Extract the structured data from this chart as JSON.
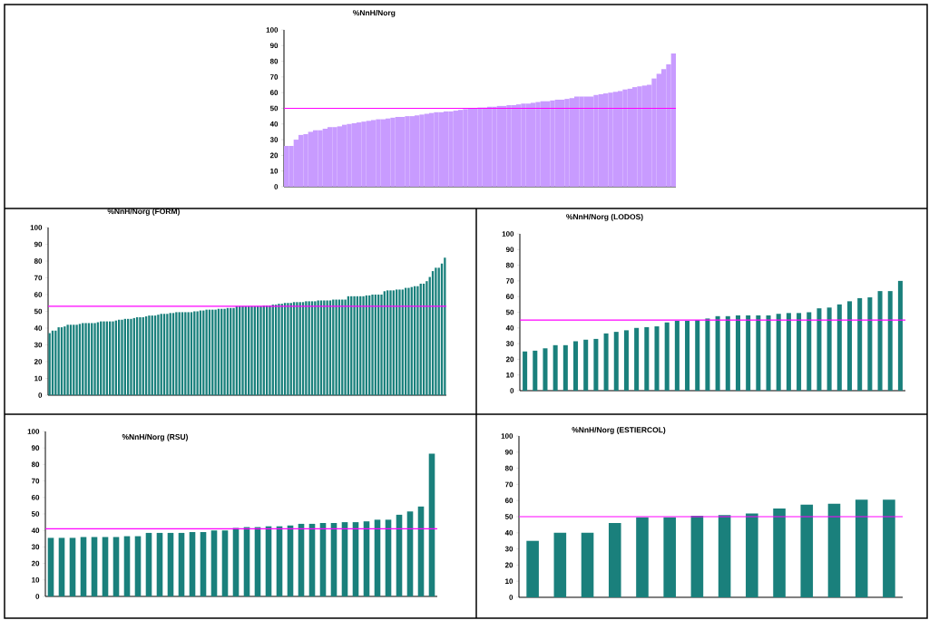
{
  "chart_data": [
    {
      "type": "bar",
      "title": "%NnH/Norg",
      "color": "#c89bff",
      "ylim": [
        0,
        100
      ],
      "yticks": [
        0,
        10,
        20,
        30,
        40,
        50,
        60,
        70,
        80,
        90,
        100
      ],
      "categories": [
        null,
        null,
        null,
        null,
        null,
        null,
        null,
        null,
        null,
        null,
        null,
        null,
        null,
        null,
        null,
        null,
        null,
        null,
        null,
        null,
        null,
        null,
        null,
        null,
        null,
        null,
        null,
        null,
        null,
        null,
        null,
        null,
        null,
        null,
        null,
        null,
        null,
        null,
        null,
        null,
        null,
        null,
        null,
        null,
        null,
        null,
        null,
        null,
        null,
        null,
        null,
        null,
        null,
        null,
        null,
        null,
        null,
        null,
        null,
        null,
        null,
        null,
        null,
        null,
        null,
        null,
        null,
        null,
        null,
        null,
        null,
        null,
        null,
        null,
        null,
        null,
        null,
        null,
        null,
        null,
        null
      ],
      "values": [
        26,
        26,
        30,
        33,
        33.5,
        35,
        36,
        36,
        37,
        38,
        38,
        38.5,
        39.5,
        40,
        40.5,
        41,
        41.5,
        42,
        42.5,
        43,
        43,
        43.5,
        44,
        44.5,
        44.5,
        45,
        45,
        45.5,
        46,
        46.5,
        47,
        47.5,
        47.5,
        48,
        48,
        48.5,
        49,
        49.5,
        50,
        50,
        50.5,
        50.5,
        51,
        51,
        51.5,
        51.5,
        52,
        52,
        52.5,
        53,
        53,
        53.5,
        54,
        54.5,
        54.5,
        55,
        55.5,
        55.5,
        56,
        56.5,
        57.5,
        57.5,
        57.5,
        57.5,
        58.5,
        59,
        59.5,
        60,
        60.5,
        61,
        62,
        62.5,
        63.5,
        64,
        64.5,
        65,
        69,
        72,
        75,
        78,
        85
      ],
      "ref_lines": [
        {
          "axis": "y",
          "value": 50,
          "color": "#ff00ff"
        }
      ]
    },
    {
      "type": "bar",
      "title": "%NnH/Norg (FORM)",
      "color": "#1a807c",
      "ylim": [
        0,
        100
      ],
      "yticks": [
        0,
        10,
        20,
        30,
        40,
        50,
        60,
        70,
        80,
        90,
        100
      ],
      "categories": [
        null,
        null,
        null,
        null,
        null,
        null,
        null,
        null,
        null,
        null,
        null,
        null,
        null,
        null,
        null,
        null,
        null,
        null,
        null,
        null,
        null,
        null,
        null,
        null,
        null,
        null,
        null,
        null,
        null,
        null,
        null,
        null,
        null,
        null,
        null,
        null,
        null,
        null,
        null,
        null,
        null,
        null,
        null,
        null,
        null,
        null,
        null,
        null,
        null,
        null,
        null,
        null,
        null,
        null,
        null,
        null,
        null,
        null,
        null,
        null,
        null,
        null,
        null,
        null,
        null,
        null,
        null,
        null,
        null,
        null,
        null,
        null,
        null,
        null,
        null,
        null,
        null,
        null,
        null,
        null,
        null,
        null,
        null,
        null,
        null,
        null,
        null,
        null,
        null,
        null,
        null,
        null,
        null,
        null,
        null,
        null,
        null,
        null,
        null,
        null,
        null,
        null,
        null,
        null,
        null,
        null,
        null,
        null,
        null,
        null,
        null,
        null,
        null,
        null,
        null,
        null,
        null,
        null,
        null,
        null,
        null,
        null,
        null,
        null,
        null,
        null,
        null,
        null,
        null,
        null,
        null,
        null
      ],
      "values": [
        37,
        38.5,
        38.5,
        40.5,
        40.5,
        41,
        42,
        42,
        42,
        42,
        42.5,
        43,
        43,
        43,
        43,
        43,
        43.5,
        44,
        44,
        44,
        44,
        44,
        44.5,
        45,
        45,
        45.5,
        45.5,
        45.5,
        46,
        46.5,
        46.5,
        46.5,
        47,
        47.5,
        47.5,
        47.5,
        48,
        48.5,
        48.5,
        48.5,
        49,
        49,
        49.5,
        49.5,
        49.5,
        49.5,
        49.5,
        49.5,
        50,
        50,
        50.5,
        50.5,
        51,
        51,
        51,
        51,
        51.5,
        51.5,
        51.5,
        52,
        52,
        52,
        53,
        53,
        53,
        53,
        53,
        53,
        53,
        53,
        53,
        53.5,
        53.5,
        53.5,
        54,
        54,
        54.5,
        54.5,
        55,
        55,
        55,
        55.5,
        55.5,
        55.5,
        55.5,
        56,
        56,
        56,
        56,
        56.5,
        56.5,
        56.5,
        56.5,
        56.5,
        57,
        57,
        57,
        57,
        57,
        59,
        59,
        59,
        59,
        59,
        59,
        59.5,
        59.5,
        60,
        60,
        60,
        60,
        62,
        62.5,
        62.5,
        62.5,
        63,
        63,
        63,
        64,
        64,
        64.5,
        65,
        65,
        66.5,
        66.5,
        68,
        70.5,
        74,
        76,
        76,
        78.5,
        82
      ],
      "ref_lines": [
        {
          "axis": "y",
          "value": 53,
          "color": "#ff00ff"
        }
      ]
    },
    {
      "type": "bar",
      "title": "%NnH/Norg  (LODOS)",
      "color": "#1a807c",
      "ylim": [
        0,
        100
      ],
      "yticks": [
        0,
        10,
        20,
        30,
        40,
        50,
        60,
        70,
        80,
        90,
        100
      ],
      "categories": [
        null,
        null,
        null,
        null,
        null,
        null,
        null,
        null,
        null,
        null,
        null,
        null,
        null,
        null,
        null,
        null,
        null,
        null,
        null,
        null,
        null,
        null,
        null,
        null,
        null,
        null,
        null,
        null,
        null,
        null,
        null,
        null,
        null,
        null,
        null,
        null,
        null,
        null
      ],
      "values": [
        25,
        25.5,
        27,
        29,
        29,
        31.5,
        32.5,
        33,
        36.5,
        37.5,
        38.5,
        40,
        40.5,
        41,
        43.5,
        44.5,
        44.5,
        45,
        46,
        47.5,
        47.5,
        48,
        48,
        48,
        48,
        49,
        49.5,
        49.5,
        50,
        52.5,
        53,
        55,
        57,
        59,
        59.5,
        63.5,
        63.5,
        70
      ],
      "ref_lines": [
        {
          "axis": "y",
          "value": 45,
          "color": "#ff00ff"
        }
      ]
    },
    {
      "type": "bar",
      "title": "%NnH/Norg (RSU)",
      "color": "#1a807c",
      "ylim": [
        0,
        100
      ],
      "yticks": [
        0,
        10,
        20,
        30,
        40,
        50,
        60,
        70,
        80,
        90,
        100
      ],
      "categories": [
        null,
        null,
        null,
        null,
        null,
        null,
        null,
        null,
        null,
        null,
        null,
        null,
        null,
        null,
        null,
        null,
        null,
        null,
        null,
        null,
        null,
        null,
        null,
        null,
        null,
        null,
        null,
        null,
        null,
        null,
        null,
        null,
        null,
        null,
        null,
        null
      ],
      "values": [
        35.5,
        35.5,
        35.5,
        36,
        36,
        36,
        36,
        36.5,
        36.5,
        38.5,
        38.5,
        38.5,
        38.5,
        39,
        39,
        40,
        40,
        41.5,
        42,
        42,
        42.5,
        42.5,
        43,
        44,
        44,
        44.5,
        44.5,
        45,
        45,
        45.5,
        46.5,
        46.5,
        49.5,
        51.5,
        54.5,
        86.5
      ],
      "ref_lines": [
        {
          "axis": "y",
          "value": 41,
          "color": "#ff00ff"
        }
      ]
    },
    {
      "type": "bar",
      "title": "%NnH/Norg (ESTIERCOL)",
      "color": "#1a807c",
      "ylim": [
        0,
        100
      ],
      "yticks": [
        0,
        10,
        20,
        30,
        40,
        50,
        60,
        70,
        80,
        90,
        100
      ],
      "categories": [
        null,
        null,
        null,
        null,
        null,
        null,
        null,
        null,
        null,
        null,
        null,
        null,
        null,
        null
      ],
      "values": [
        35,
        40,
        40,
        46,
        49.5,
        49.5,
        50.5,
        51,
        52,
        55,
        57.5,
        58,
        60.5,
        60.5
      ],
      "ref_lines": [
        {
          "axis": "y",
          "value": 50,
          "color": "#ff00ff"
        }
      ]
    }
  ]
}
